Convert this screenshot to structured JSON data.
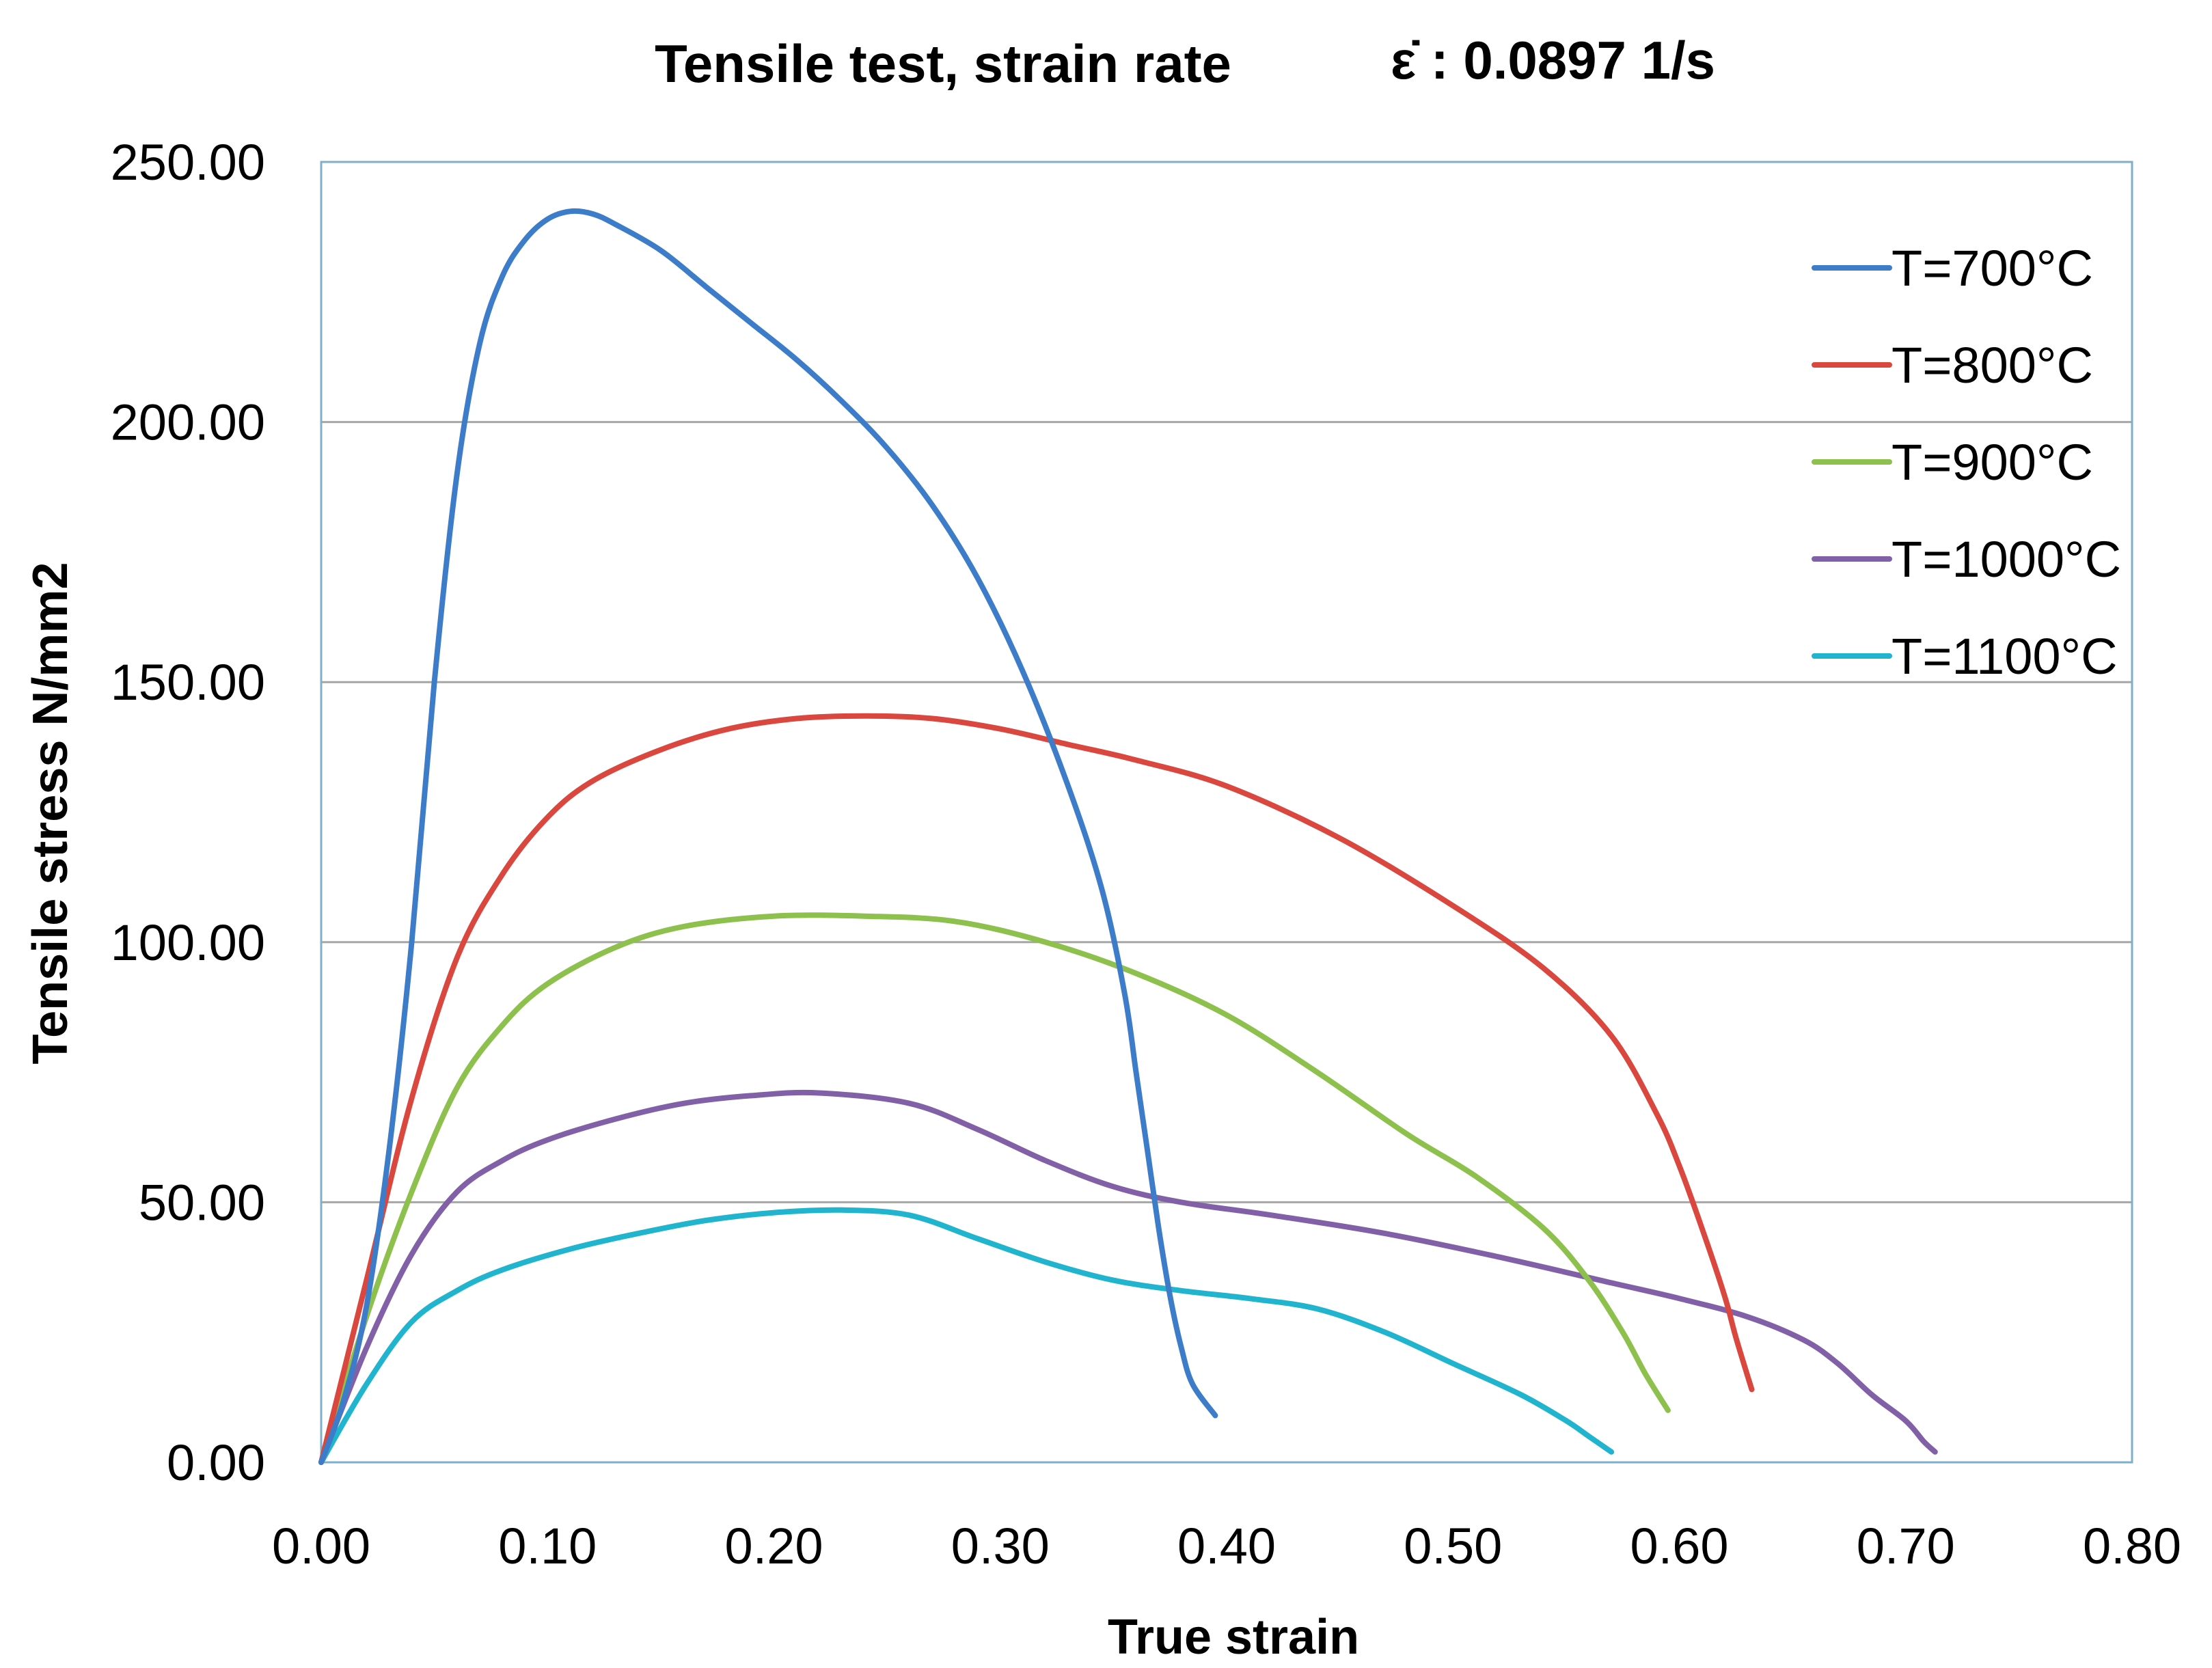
{
  "chart_data": {
    "type": "line",
    "title": "Tensile test, strain rate",
    "title_rate": "ε̇ : 0.0897 1/s",
    "xlabel": "True strain",
    "ylabel": "Tensile stress N/mm2",
    "xlim": [
      0,
      0.8
    ],
    "ylim": [
      0,
      250
    ],
    "x_ticks": [
      0,
      0.1,
      0.2,
      0.3,
      0.4,
      0.5,
      0.6,
      0.7,
      0.8
    ],
    "x_tick_labels": [
      "0.00",
      "0.10",
      "0.20",
      "0.30",
      "0.40",
      "0.50",
      "0.60",
      "0.70",
      "0.80"
    ],
    "y_ticks": [
      0,
      50,
      100,
      150,
      200,
      250
    ],
    "y_tick_labels": [
      "0.00",
      "50.00",
      "100.00",
      "150.00",
      "200.00",
      "250.00"
    ],
    "grid": "horizontal",
    "legend_position": "top-right",
    "series": [
      {
        "name": "T=700°C",
        "color": "#3D7CC9",
        "points": [
          [
            0.0,
            0
          ],
          [
            0.01,
            12
          ],
          [
            0.02,
            30
          ],
          [
            0.03,
            60
          ],
          [
            0.04,
            100
          ],
          [
            0.05,
            150
          ],
          [
            0.06,
            190
          ],
          [
            0.07,
            215
          ],
          [
            0.08,
            228
          ],
          [
            0.09,
            235
          ],
          [
            0.1,
            239
          ],
          [
            0.11,
            240.5
          ],
          [
            0.12,
            240
          ],
          [
            0.13,
            238
          ],
          [
            0.15,
            233
          ],
          [
            0.17,
            226
          ],
          [
            0.19,
            219
          ],
          [
            0.21,
            212
          ],
          [
            0.23,
            204
          ],
          [
            0.25,
            195
          ],
          [
            0.27,
            184
          ],
          [
            0.29,
            170
          ],
          [
            0.31,
            152
          ],
          [
            0.33,
            130
          ],
          [
            0.345,
            110
          ],
          [
            0.355,
            90
          ],
          [
            0.36,
            75
          ],
          [
            0.365,
            60
          ],
          [
            0.37,
            45
          ],
          [
            0.375,
            32
          ],
          [
            0.38,
            22
          ],
          [
            0.385,
            15
          ],
          [
            0.395,
            9
          ]
        ]
      },
      {
        "name": "T=800°C",
        "color": "#D9473F",
        "points": [
          [
            0.0,
            0
          ],
          [
            0.02,
            35
          ],
          [
            0.04,
            70
          ],
          [
            0.06,
            97
          ],
          [
            0.08,
            113
          ],
          [
            0.1,
            124
          ],
          [
            0.12,
            131
          ],
          [
            0.15,
            137
          ],
          [
            0.18,
            141
          ],
          [
            0.21,
            143
          ],
          [
            0.24,
            143.5
          ],
          [
            0.27,
            143
          ],
          [
            0.3,
            141
          ],
          [
            0.33,
            138
          ],
          [
            0.36,
            135
          ],
          [
            0.4,
            130
          ],
          [
            0.45,
            120
          ],
          [
            0.5,
            107
          ],
          [
            0.54,
            95
          ],
          [
            0.57,
            82
          ],
          [
            0.59,
            67
          ],
          [
            0.6,
            57
          ],
          [
            0.61,
            45
          ],
          [
            0.62,
            32
          ],
          [
            0.625,
            24
          ],
          [
            0.632,
            14
          ]
        ]
      },
      {
        "name": "T=900°C",
        "color": "#8DC04C",
        "points": [
          [
            0.0,
            0
          ],
          [
            0.02,
            28
          ],
          [
            0.04,
            52
          ],
          [
            0.06,
            72
          ],
          [
            0.08,
            84
          ],
          [
            0.1,
            92
          ],
          [
            0.13,
            99
          ],
          [
            0.16,
            103
          ],
          [
            0.2,
            105
          ],
          [
            0.24,
            105
          ],
          [
            0.28,
            104
          ],
          [
            0.32,
            100
          ],
          [
            0.36,
            94
          ],
          [
            0.4,
            86
          ],
          [
            0.44,
            75
          ],
          [
            0.48,
            63
          ],
          [
            0.51,
            55
          ],
          [
            0.54,
            45
          ],
          [
            0.56,
            35
          ],
          [
            0.575,
            25
          ],
          [
            0.585,
            17
          ],
          [
            0.595,
            10
          ]
        ]
      },
      {
        "name": "T=1000°C",
        "color": "#8260A8",
        "points": [
          [
            0.0,
            0
          ],
          [
            0.02,
            22
          ],
          [
            0.04,
            40
          ],
          [
            0.06,
            52
          ],
          [
            0.08,
            58
          ],
          [
            0.1,
            62
          ],
          [
            0.13,
            66
          ],
          [
            0.16,
            69
          ],
          [
            0.19,
            70.5
          ],
          [
            0.22,
            71
          ],
          [
            0.26,
            69
          ],
          [
            0.29,
            64
          ],
          [
            0.32,
            58
          ],
          [
            0.35,
            53
          ],
          [
            0.38,
            50
          ],
          [
            0.42,
            47.5
          ],
          [
            0.47,
            44
          ],
          [
            0.52,
            39.5
          ],
          [
            0.57,
            34.5
          ],
          [
            0.6,
            31.5
          ],
          [
            0.63,
            28
          ],
          [
            0.655,
            23.5
          ],
          [
            0.67,
            19
          ],
          [
            0.685,
            13
          ],
          [
            0.7,
            8
          ],
          [
            0.708,
            4
          ],
          [
            0.713,
            2
          ]
        ]
      },
      {
        "name": "T=1100°C",
        "color": "#21B4CF",
        "points": [
          [
            0.0,
            0
          ],
          [
            0.02,
            15
          ],
          [
            0.04,
            27
          ],
          [
            0.06,
            33
          ],
          [
            0.08,
            37
          ],
          [
            0.11,
            41
          ],
          [
            0.14,
            44
          ],
          [
            0.17,
            46.5
          ],
          [
            0.2,
            48
          ],
          [
            0.23,
            48.5
          ],
          [
            0.26,
            47.5
          ],
          [
            0.29,
            43
          ],
          [
            0.32,
            38.5
          ],
          [
            0.35,
            35
          ],
          [
            0.38,
            33
          ],
          [
            0.41,
            31.5
          ],
          [
            0.44,
            29.5
          ],
          [
            0.47,
            25
          ],
          [
            0.5,
            19
          ],
          [
            0.53,
            13
          ],
          [
            0.55,
            8
          ],
          [
            0.56,
            5
          ],
          [
            0.57,
            2
          ]
        ]
      }
    ]
  }
}
